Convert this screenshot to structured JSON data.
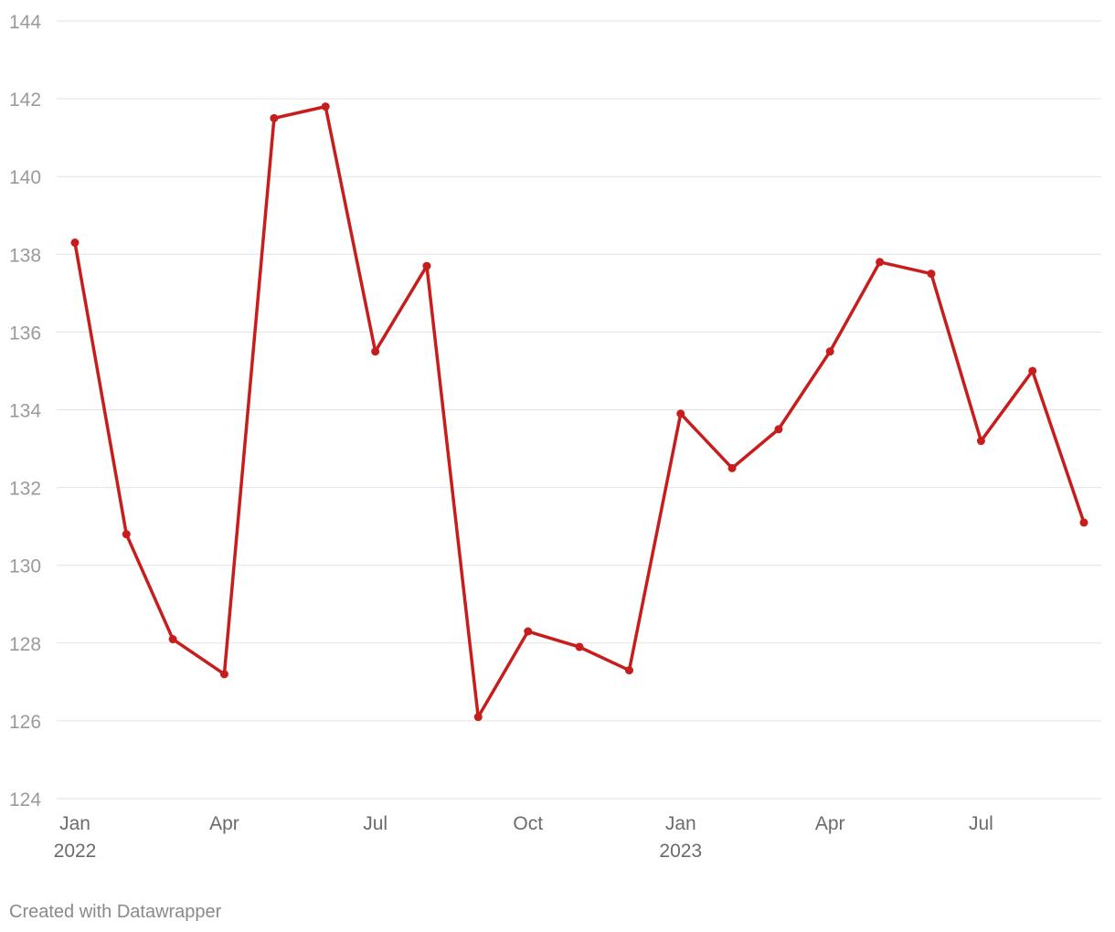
{
  "chart_data": {
    "type": "line",
    "x": [
      "2022-01",
      "2022-02",
      "2022-03",
      "2022-04",
      "2022-05",
      "2022-06",
      "2022-07",
      "2022-08",
      "2022-09",
      "2022-10",
      "2022-11",
      "2022-12",
      "2023-01",
      "2023-02",
      "2023-03",
      "2023-04",
      "2023-05",
      "2023-06",
      "2023-07",
      "2023-08",
      "2023-09"
    ],
    "series": [
      {
        "color": "#c71e1d",
        "values": [
          138.3,
          130.8,
          128.1,
          127.2,
          141.5,
          141.8,
          135.5,
          137.7,
          126.1,
          128.3,
          127.9,
          127.3,
          133.9,
          132.5,
          133.5,
          135.5,
          137.8,
          137.5,
          133.2,
          135.0,
          131.1
        ]
      }
    ],
    "xlim": [
      "2022-01",
      "2023-09"
    ],
    "xticks": [
      {
        "value": "2022-01",
        "label": "Jan",
        "label2": "2022"
      },
      {
        "value": "2022-04",
        "label": "Apr"
      },
      {
        "value": "2022-07",
        "label": "Jul"
      },
      {
        "value": "2022-10",
        "label": "Oct"
      },
      {
        "value": "2023-01",
        "label": "Jan",
        "label2": "2023"
      },
      {
        "value": "2023-04",
        "label": "Apr"
      },
      {
        "value": "2023-07",
        "label": "Jul"
      }
    ],
    "ylim": [
      124,
      144
    ],
    "yticks": [
      124,
      126,
      128,
      130,
      132,
      134,
      136,
      138,
      140,
      142,
      144
    ],
    "grid": true,
    "footer": "Created with Datawrapper"
  }
}
